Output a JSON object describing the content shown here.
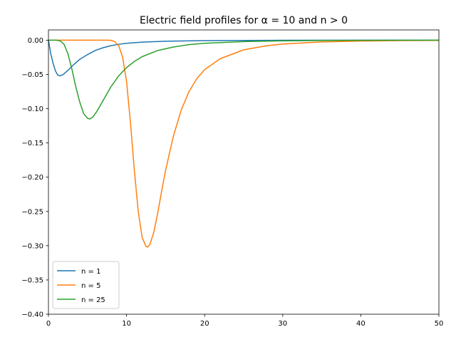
{
  "chart_data": {
    "type": "line",
    "title": "Electric field profiles for α = 10 and n > 0",
    "xlabel": "",
    "ylabel": "",
    "xlim": [
      0,
      50
    ],
    "ylim": [
      -0.4,
      0.015
    ],
    "grid": false,
    "legend_position": "lower-left",
    "xticks": [
      0,
      10,
      20,
      30,
      40,
      50
    ],
    "xtick_labels": [
      "0",
      "10",
      "20",
      "30",
      "40",
      "50"
    ],
    "yticks": [
      0.0,
      -0.05,
      -0.1,
      -0.15,
      -0.2,
      -0.25,
      -0.3,
      -0.35,
      -0.4
    ],
    "ytick_labels": [
      "0.00",
      "−0.05",
      "−0.10",
      "−0.15",
      "−0.20",
      "−0.25",
      "−0.30",
      "−0.35",
      "−0.40"
    ],
    "series": [
      {
        "name": "n = 1",
        "color": "#1f77b4",
        "points": [
          [
            0,
            0
          ],
          [
            0.3,
            -0.02
          ],
          [
            0.6,
            -0.034
          ],
          [
            0.9,
            -0.045
          ],
          [
            1.2,
            -0.051
          ],
          [
            1.5,
            -0.052
          ],
          [
            1.9,
            -0.05
          ],
          [
            2.5,
            -0.044
          ],
          [
            3.2,
            -0.036
          ],
          [
            4,
            -0.028
          ],
          [
            5,
            -0.021
          ],
          [
            6,
            -0.015
          ],
          [
            7,
            -0.011
          ],
          [
            8,
            -0.008
          ],
          [
            9,
            -0.006
          ],
          [
            10,
            -0.0045
          ],
          [
            12,
            -0.0028
          ],
          [
            15,
            -0.0015
          ],
          [
            20,
            -0.0006
          ],
          [
            25,
            -0.0003
          ],
          [
            30,
            -0.0001
          ],
          [
            40,
            0
          ],
          [
            50,
            0
          ]
        ]
      },
      {
        "name": "n = 5",
        "color": "#ff7f0e",
        "points": [
          [
            0,
            0
          ],
          [
            7.5,
            0
          ],
          [
            8,
            -0.0002
          ],
          [
            8.5,
            -0.002
          ],
          [
            9,
            -0.008
          ],
          [
            9.5,
            -0.025
          ],
          [
            10,
            -0.06
          ],
          [
            10.5,
            -0.12
          ],
          [
            11,
            -0.19
          ],
          [
            11.5,
            -0.25
          ],
          [
            12,
            -0.288
          ],
          [
            12.5,
            -0.301
          ],
          [
            12.7,
            -0.302
          ],
          [
            13,
            -0.298
          ],
          [
            13.5,
            -0.28
          ],
          [
            14,
            -0.252
          ],
          [
            14.5,
            -0.22
          ],
          [
            15,
            -0.19
          ],
          [
            16,
            -0.14
          ],
          [
            17,
            -0.102
          ],
          [
            18,
            -0.075
          ],
          [
            19,
            -0.056
          ],
          [
            20,
            -0.043
          ],
          [
            22,
            -0.027
          ],
          [
            25,
            -0.014
          ],
          [
            28,
            -0.008
          ],
          [
            30,
            -0.0055
          ],
          [
            35,
            -0.0025
          ],
          [
            40,
            -0.0012
          ],
          [
            45,
            -0.0006
          ],
          [
            50,
            -0.0003
          ]
        ]
      },
      {
        "name": "n = 25",
        "color": "#2ca02c",
        "points": [
          [
            0,
            0
          ],
          [
            1,
            0
          ],
          [
            1.5,
            -0.001
          ],
          [
            2,
            -0.006
          ],
          [
            2.5,
            -0.02
          ],
          [
            3,
            -0.042
          ],
          [
            3.5,
            -0.068
          ],
          [
            4,
            -0.09
          ],
          [
            4.5,
            -0.107
          ],
          [
            5,
            -0.114
          ],
          [
            5.3,
            -0.115
          ],
          [
            5.7,
            -0.112
          ],
          [
            6.2,
            -0.104
          ],
          [
            7,
            -0.088
          ],
          [
            8,
            -0.068
          ],
          [
            9,
            -0.052
          ],
          [
            10,
            -0.04
          ],
          [
            11,
            -0.031
          ],
          [
            12,
            -0.024
          ],
          [
            14,
            -0.015
          ],
          [
            16,
            -0.01
          ],
          [
            18,
            -0.0065
          ],
          [
            20,
            -0.0045
          ],
          [
            25,
            -0.002
          ],
          [
            30,
            -0.001
          ],
          [
            35,
            -0.0005
          ],
          [
            40,
            -0.0002
          ],
          [
            50,
            0
          ]
        ]
      }
    ]
  }
}
